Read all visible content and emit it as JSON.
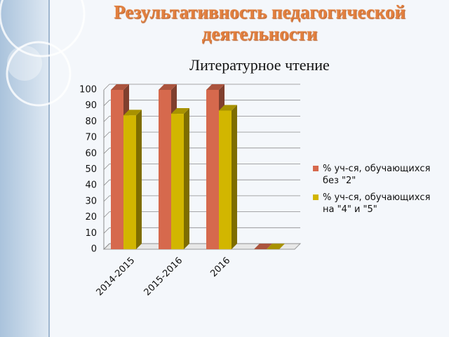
{
  "chart_data": {
    "type": "bar3d",
    "title": "Результативность педагогической деятельности",
    "subtitle": "Литературное чтение",
    "categories": [
      "2014-2015",
      "2015-2016",
      "2016",
      null
    ],
    "series": [
      {
        "name": "% уч-ся, обучающихся без \"2\"",
        "color": "#d6694d",
        "values": [
          100,
          100,
          100,
          0
        ]
      },
      {
        "name": "% уч-ся, обучающихся на \"4\" и \"5\"",
        "color": "#d2b600",
        "values": [
          84,
          85,
          87,
          0
        ]
      }
    ],
    "ylim": [
      0,
      100
    ],
    "yticks": [
      0,
      10,
      20,
      30,
      40,
      50,
      60,
      70,
      80,
      90,
      100
    ],
    "grid": true,
    "legend": "right"
  }
}
